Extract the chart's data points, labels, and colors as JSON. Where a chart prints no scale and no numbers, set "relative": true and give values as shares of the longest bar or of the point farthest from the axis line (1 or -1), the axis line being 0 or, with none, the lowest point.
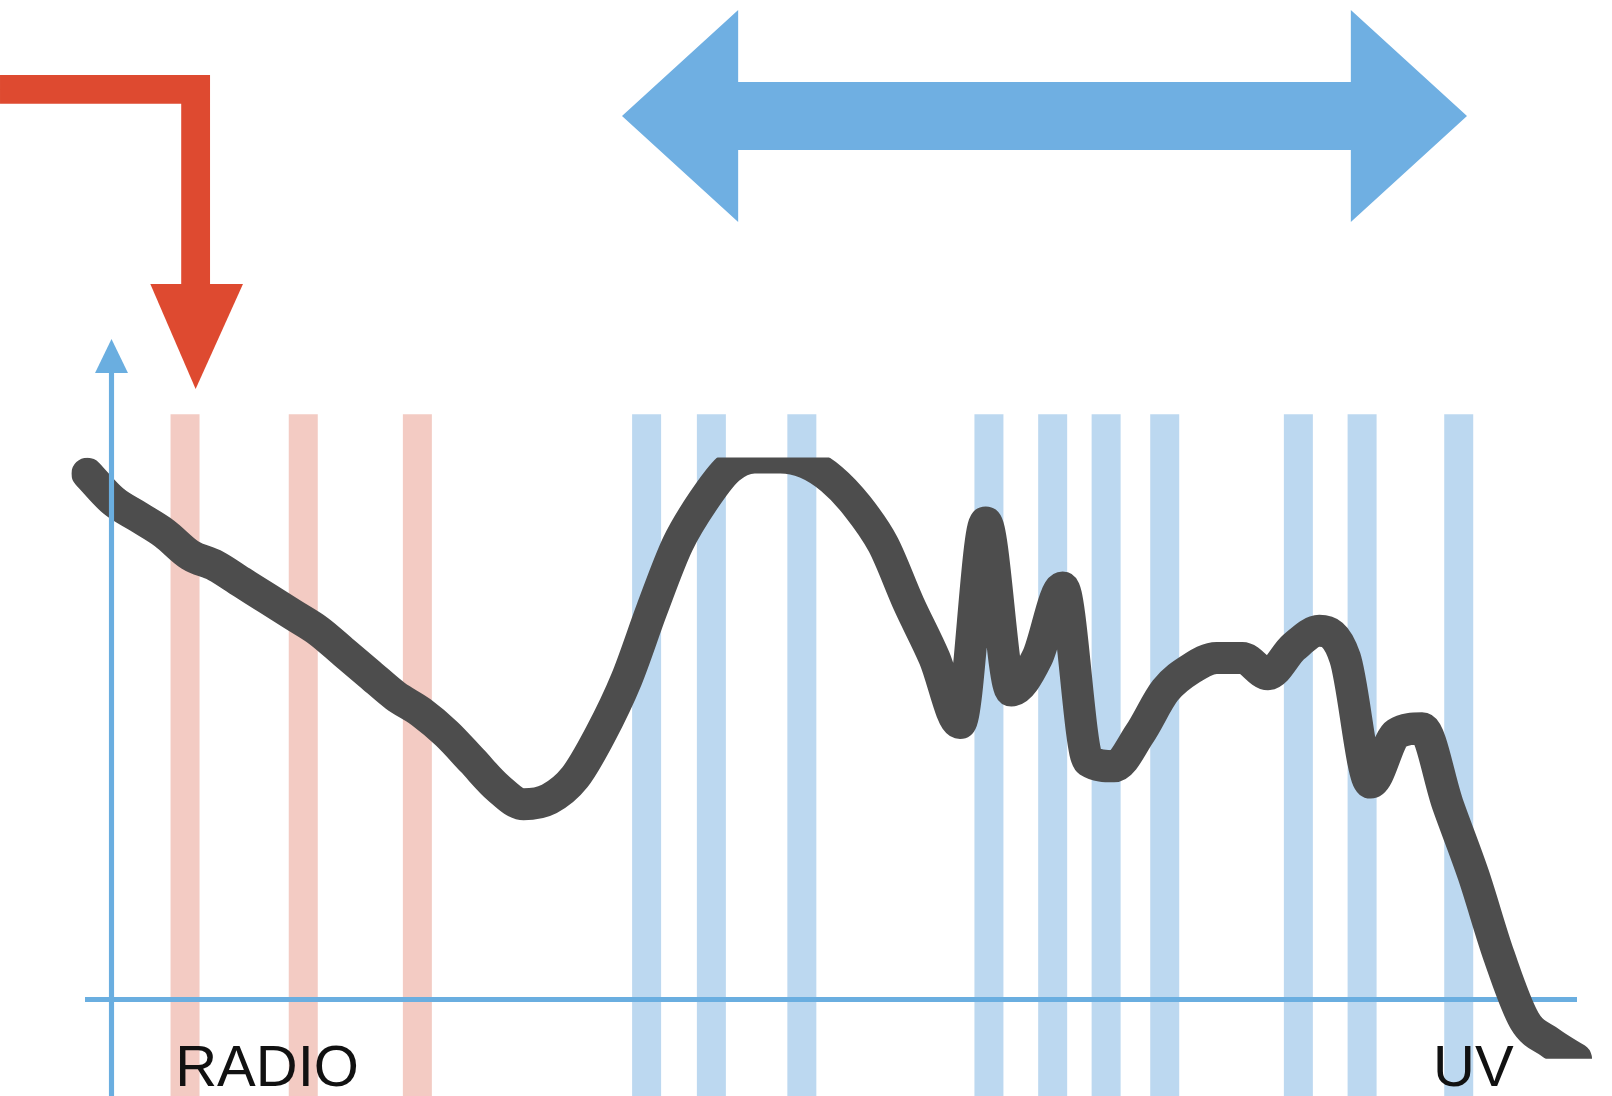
{
  "chart_data": {
    "type": "line",
    "relative": true,
    "marker": "none",
    "categories": [
      null,
      null,
      null,
      null,
      null,
      null,
      null,
      "RADIO",
      null,
      null,
      null,
      null,
      null,
      null,
      null,
      null,
      null,
      null,
      null,
      null,
      null,
      null,
      null,
      null,
      null,
      null,
      null,
      null,
      null,
      null,
      null,
      null,
      null,
      null,
      null,
      null,
      null,
      null,
      null,
      null,
      null,
      null,
      null,
      null,
      null,
      null,
      null,
      null,
      null,
      null,
      null,
      null,
      null,
      null,
      "UV",
      null,
      null,
      null,
      null
    ],
    "series": [
      {
        "color": "#4d4d4d",
        "values": [
          0.97,
          0.92,
          0.89,
          0.86,
          0.82,
          0.8,
          0.77,
          0.74,
          0.71,
          0.68,
          0.64,
          0.6,
          0.56,
          0.53,
          0.49,
          0.44,
          0.39,
          0.36,
          0.37,
          0.41,
          0.49,
          0.59,
          0.72,
          0.84,
          0.92,
          0.98,
          1,
          1,
          0.99,
          0.96,
          0.91,
          0.84,
          0.73,
          0.63,
          0.51,
          0.88,
          0.57,
          0.63,
          0.76,
          0.44,
          0.43,
          0.49,
          0.57,
          0.61,
          0.63,
          0.63,
          0.6,
          0.65,
          0.68,
          0.63,
          0.4,
          0.49,
          0.5,
          0.36,
          0.23,
          0.08,
          -0.04,
          -0.08,
          -0.11
        ]
      }
    ]
  }
}
